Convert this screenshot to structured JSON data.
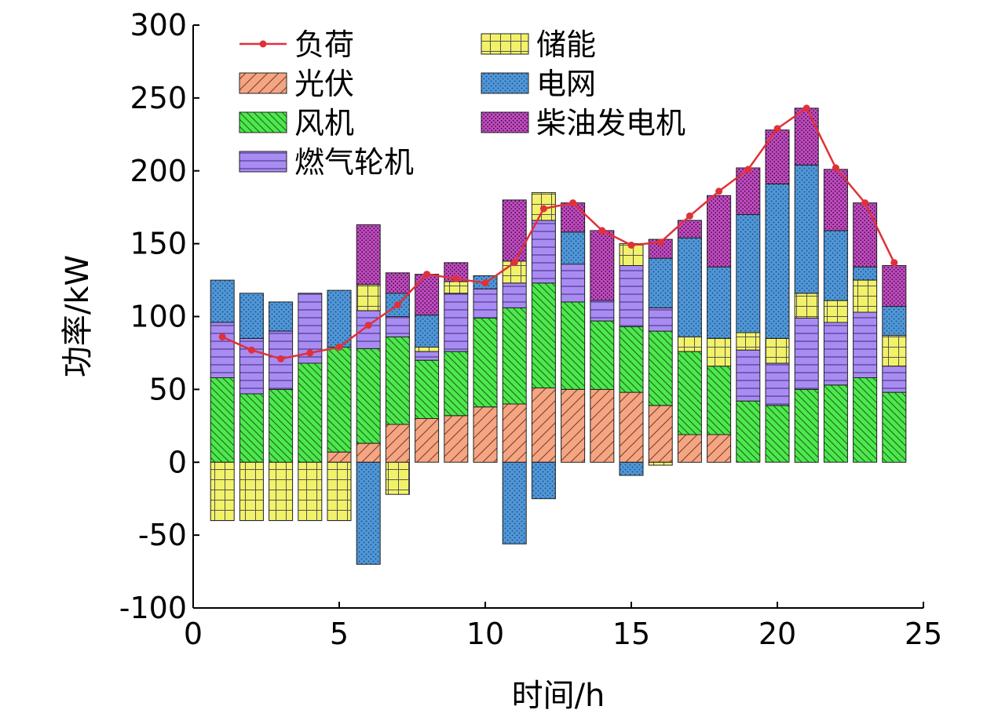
{
  "chart_data": {
    "type": "bar",
    "subtype": "stacked",
    "xlabel": "时间/h",
    "ylabel": "功率/kW",
    "xlim": [
      0,
      25
    ],
    "ylim": [
      -100,
      300
    ],
    "x_ticks": [
      "0",
      "5",
      "10",
      "15",
      "20",
      "25"
    ],
    "y_ticks": [
      "-100",
      "-50",
      "0",
      "50",
      "100",
      "150",
      "200",
      "250",
      "300"
    ],
    "grid": false,
    "legend_position": "top-left",
    "x": [
      1,
      2,
      3,
      4,
      5,
      6,
      7,
      8,
      9,
      10,
      11,
      12,
      13,
      14,
      15,
      16,
      17,
      18,
      19,
      20,
      21,
      22,
      23,
      24
    ],
    "series": [
      {
        "name": "光伏",
        "color": "#f4a582",
        "pattern": "diagonal-hatch",
        "values": [
          0,
          0,
          0,
          0,
          7,
          13,
          26,
          30,
          32,
          38,
          40,
          51,
          50,
          50,
          48,
          39,
          19,
          19,
          0,
          0,
          0,
          0,
          0,
          0
        ]
      },
      {
        "name": "风机",
        "color": "#4ce84c",
        "pattern": "diagonal-hatch-dense",
        "values": [
          58,
          47,
          50,
          68,
          72,
          65,
          60,
          40,
          44,
          61,
          66,
          72,
          60,
          47,
          45,
          51,
          57,
          47,
          42,
          39,
          50,
          53,
          58,
          48
        ]
      },
      {
        "name": "燃气轮机",
        "color": "#a98cf2",
        "pattern": "horizontal-lines",
        "values": [
          38,
          38,
          40,
          48,
          0,
          26,
          14,
          6,
          40,
          20,
          17,
          43,
          26,
          14,
          42,
          16,
          0,
          0,
          35,
          29,
          49,
          43,
          45,
          18
        ]
      },
      {
        "name": "储能",
        "color": "#f2f26a",
        "pattern": "grid",
        "values": [
          -40,
          -40,
          -40,
          -40,
          -40,
          18,
          -22,
          3,
          8,
          0,
          15,
          19,
          0,
          0,
          15,
          -2,
          10,
          19,
          12,
          17,
          17,
          15,
          22,
          21
        ]
      },
      {
        "name": "电网",
        "color": "#4f97d8",
        "pattern": "dots",
        "values": [
          29,
          31,
          20,
          0,
          39,
          -70,
          16,
          22,
          0,
          9,
          -56,
          -25,
          22,
          0,
          -9,
          34,
          68,
          49,
          81,
          106,
          88,
          48,
          9,
          20
        ]
      },
      {
        "name": "柴油发电机",
        "color": "#c24bc2",
        "pattern": "dots-dense",
        "values": [
          0,
          0,
          0,
          0,
          0,
          41,
          14,
          28,
          13,
          0,
          42,
          0,
          20,
          48,
          0,
          13,
          12,
          49,
          32,
          37,
          39,
          42,
          44,
          28
        ]
      }
    ],
    "load": {
      "name": "负荷",
      "color": "#e0303a",
      "values": [
        86,
        77,
        71,
        75,
        79,
        94,
        108,
        129,
        126,
        123,
        137,
        174,
        178,
        159,
        149,
        151,
        169,
        186,
        201,
        229,
        243,
        202,
        178,
        137
      ]
    },
    "legend_order": [
      "负荷",
      "储能",
      "光伏",
      "电网",
      "风机",
      "柴油发电机",
      "燃气轮机"
    ]
  }
}
